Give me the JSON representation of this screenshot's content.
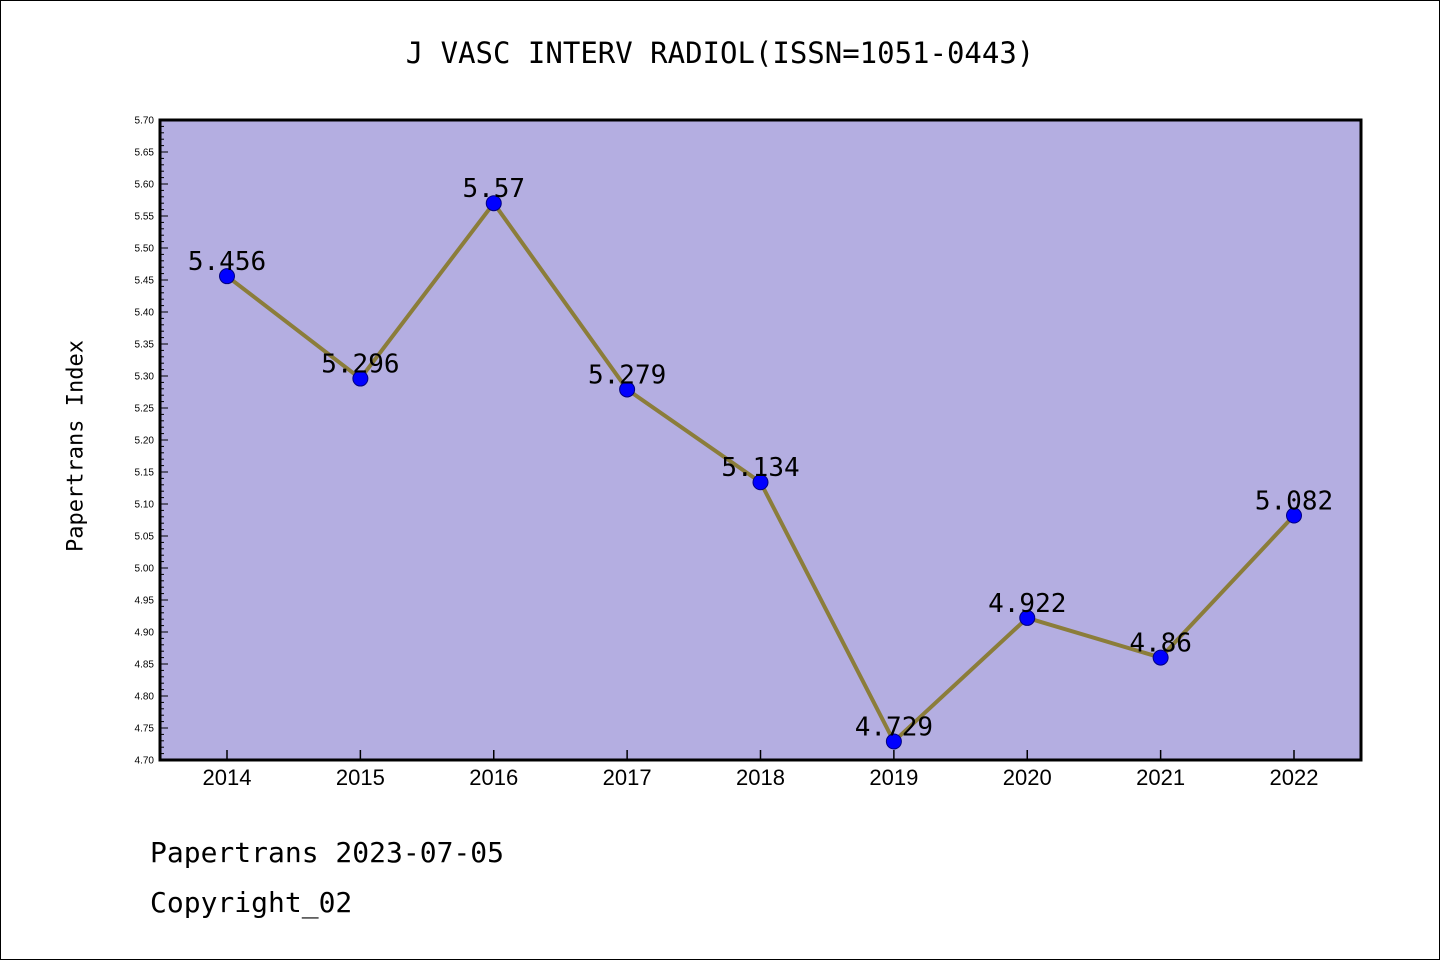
{
  "header": {
    "title": "J VASC INTERV RADIOL(ISSN=1051-0443)"
  },
  "footer": {
    "line1": "Papertrans 2023-07-05",
    "line2": "Copyright_02"
  },
  "chart_data": {
    "type": "line",
    "title": "J VASC INTERV RADIOL(ISSN=1051-0443)",
    "xlabel": "",
    "ylabel": "Papertrans Index",
    "categories": [
      "2014",
      "2015",
      "2016",
      "2017",
      "2018",
      "2019",
      "2020",
      "2021",
      "2022"
    ],
    "series": [
      {
        "values": [
          5.456,
          5.296,
          5.57,
          5.279,
          5.134,
          4.729,
          4.922,
          4.86,
          5.082
        ]
      }
    ],
    "data_labels": [
      "5.456",
      "5.296",
      "5.57",
      "5.279",
      "5.134",
      "4.729",
      "4.922",
      "4.86",
      "5.082"
    ],
    "ylim": [
      4.7,
      5.7
    ],
    "yticks": [
      "4.70",
      "4.75",
      "4.80",
      "4.85",
      "4.90",
      "4.95",
      "5.00",
      "5.05",
      "5.10",
      "5.15",
      "5.20",
      "5.25",
      "5.30",
      "5.35",
      "5.40",
      "5.45",
      "5.50",
      "5.55",
      "5.60",
      "5.65",
      "5.70"
    ],
    "grid": false,
    "colors": {
      "plot_background": "#b4aee1",
      "line": "#8b7d3a",
      "marker": "#0000ff",
      "marker_edge": "#000080"
    }
  }
}
